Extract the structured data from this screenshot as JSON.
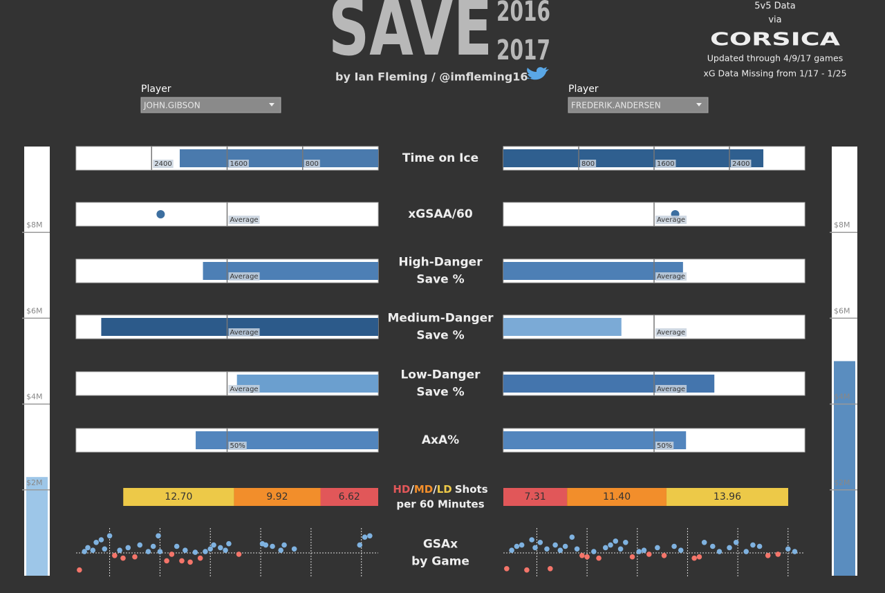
{
  "header": {
    "title": "SAVE",
    "year_start": "2016",
    "year_end": "2017",
    "byline": "by Ian Fleming / @imfleming16",
    "data_note": "5v5 Data",
    "via": "via",
    "source": "CORSICA",
    "updated": "Updated through 4/9/17 games",
    "missing": "xG Data Missing from 1/17 - 1/25"
  },
  "players": {
    "label": "Player",
    "left": "JOHN.GIBSON",
    "right": "FREDERIK.ANDERSEN"
  },
  "chart_data": [
    {
      "type": "bar",
      "title": [
        "Time on Ice"
      ],
      "xlim": [
        0,
        3200
      ],
      "xticks": [
        800,
        1600,
        2400
      ],
      "values": [
        2102,
        2760
      ],
      "colors": [
        "#4a7aad",
        "#2f5f8f"
      ]
    },
    {
      "type": "dot",
      "title": [
        "xGSAA/60"
      ],
      "xlim": [
        -0.5,
        0.5
      ],
      "reference": {
        "value": 0,
        "label": "Average"
      },
      "values": [
        0.22,
        0.07
      ],
      "colors": [
        "#3d6fa0",
        "#3d6fa0"
      ]
    },
    {
      "type": "bar",
      "title": [
        "High-Danger",
        "Save %"
      ],
      "xlim": [
        0.7,
        0.95
      ],
      "reference": {
        "value": 0.825,
        "label": "Average"
      },
      "values": [
        0.845,
        0.849
      ],
      "colors": [
        "#4d7fb5",
        "#4d7fb5"
      ]
    },
    {
      "type": "bar",
      "title": [
        "Medium-Danger",
        "Save %"
      ],
      "xlim": [
        0.85,
        0.97
      ],
      "reference": {
        "value": 0.91,
        "label": "Average"
      },
      "values": [
        0.96,
        0.897
      ],
      "colors": [
        "#2c5a8a",
        "#7baad6"
      ]
    },
    {
      "type": "bar",
      "title": [
        "Low-Danger",
        "Save %"
      ],
      "xlim": [
        0.95,
        0.99
      ],
      "reference": {
        "value": 0.97,
        "label": "Average"
      },
      "values": [
        0.9687,
        0.978
      ],
      "colors": [
        "#6b9fcf",
        "#4475ad"
      ]
    },
    {
      "type": "bar",
      "title": [
        "AxA%"
      ],
      "xlim": [
        0,
        100
      ],
      "reference": {
        "value": 50,
        "label": "50%"
      },
      "values": [
        60.4,
        60.6
      ],
      "colors": [
        "#5285bd",
        "#5285bd"
      ]
    },
    {
      "type": "stacked",
      "title": [
        "Shots",
        "per 60 Minutes"
      ],
      "separator": "/",
      "series": [
        {
          "name": "HD",
          "color": "#e15759",
          "values": [
            6.62,
            7.31
          ],
          "value_labels": [
            "6.62",
            "7.31"
          ]
        },
        {
          "name": "MD",
          "color": "#f28e2b",
          "values": [
            9.92,
            11.4
          ],
          "value_labels": [
            "9.92",
            "11.40"
          ]
        },
        {
          "name": "LD",
          "color": "#edc948",
          "values": [
            12.7,
            13.96
          ],
          "value_labels": [
            "12.70",
            "13.96"
          ]
        }
      ]
    },
    {
      "type": "scatter",
      "title": [
        "GSAx",
        "by Game"
      ],
      "xlim": [
        0,
        180
      ],
      "ylim": [
        -2,
        2
      ],
      "xticks": [
        20,
        50,
        80,
        110,
        140,
        170
      ],
      "positive_color": "#7fb2e0",
      "negative_color": "#f4756a",
      "series": [
        {
          "x": [
            2,
            5,
            7,
            10,
            12,
            15,
            17,
            20,
            23,
            26,
            28,
            31,
            35,
            38,
            43,
            46,
            49,
            50,
            54,
            57,
            60,
            63,
            65,
            68,
            71,
            74,
            77,
            80,
            82,
            86,
            89,
            91,
            97,
            111,
            113,
            117,
            122,
            124,
            130,
            169,
            172,
            175
          ],
          "values": [
            -1.3,
            0.1,
            0.4,
            0.2,
            0.8,
            1.0,
            0.3,
            1.3,
            -0.2,
            0.2,
            -0.4,
            0.4,
            -0.3,
            0.6,
            0.1,
            0.5,
            1.3,
            0.1,
            -0.6,
            -0.1,
            0.5,
            -0.6,
            0.2,
            -0.7,
            0.05,
            -0.4,
            0.1,
            0.3,
            0.6,
            0.4,
            0.2,
            0.7,
            -0.1,
            0.7,
            0.6,
            0.5,
            0.2,
            0.6,
            0.3,
            0.6,
            1.2,
            1.3
          ]
        },
        {
          "x": [
            2,
            5,
            8,
            11,
            14,
            17,
            19,
            22,
            26,
            28,
            31,
            34,
            37,
            41,
            44,
            47,
            50,
            54,
            57,
            61,
            64,
            67,
            70,
            73,
            77,
            81,
            84,
            87,
            92,
            96,
            102,
            106,
            114,
            117,
            120,
            125,
            129,
            135,
            139,
            145,
            149,
            153,
            158,
            164,
            170,
            174
          ],
          "values": [
            -1.2,
            0.2,
            0.5,
            0.6,
            -1.3,
            1.0,
            0.4,
            0.8,
            0.3,
            -1.2,
            0.6,
            0.2,
            0.5,
            1.2,
            0.3,
            -0.2,
            -0.3,
            0.1,
            -0.4,
            0.4,
            0.6,
            0.9,
            0.3,
            0.8,
            -0.3,
            0.1,
            0.2,
            -0.1,
            0.4,
            -0.2,
            0.5,
            0.2,
            -0.4,
            -0.3,
            0.8,
            0.5,
            0.1,
            0.4,
            0.8,
            0.1,
            0.6,
            0.5,
            -0.2,
            -0.1,
            0.3,
            0.1
          ]
        }
      ]
    },
    {
      "type": "column",
      "ylim": [
        0,
        10000000
      ],
      "yticks": [
        {
          "value": 2000000,
          "label": "$2M"
        },
        {
          "value": 4000000,
          "label": "$4M"
        },
        {
          "value": 6000000,
          "label": "$6M"
        },
        {
          "value": 8000000,
          "label": "$8M"
        }
      ],
      "values": [
        2300000,
        5000000
      ],
      "colors": [
        "#9dc6e8",
        "#5a8dbf"
      ]
    }
  ]
}
